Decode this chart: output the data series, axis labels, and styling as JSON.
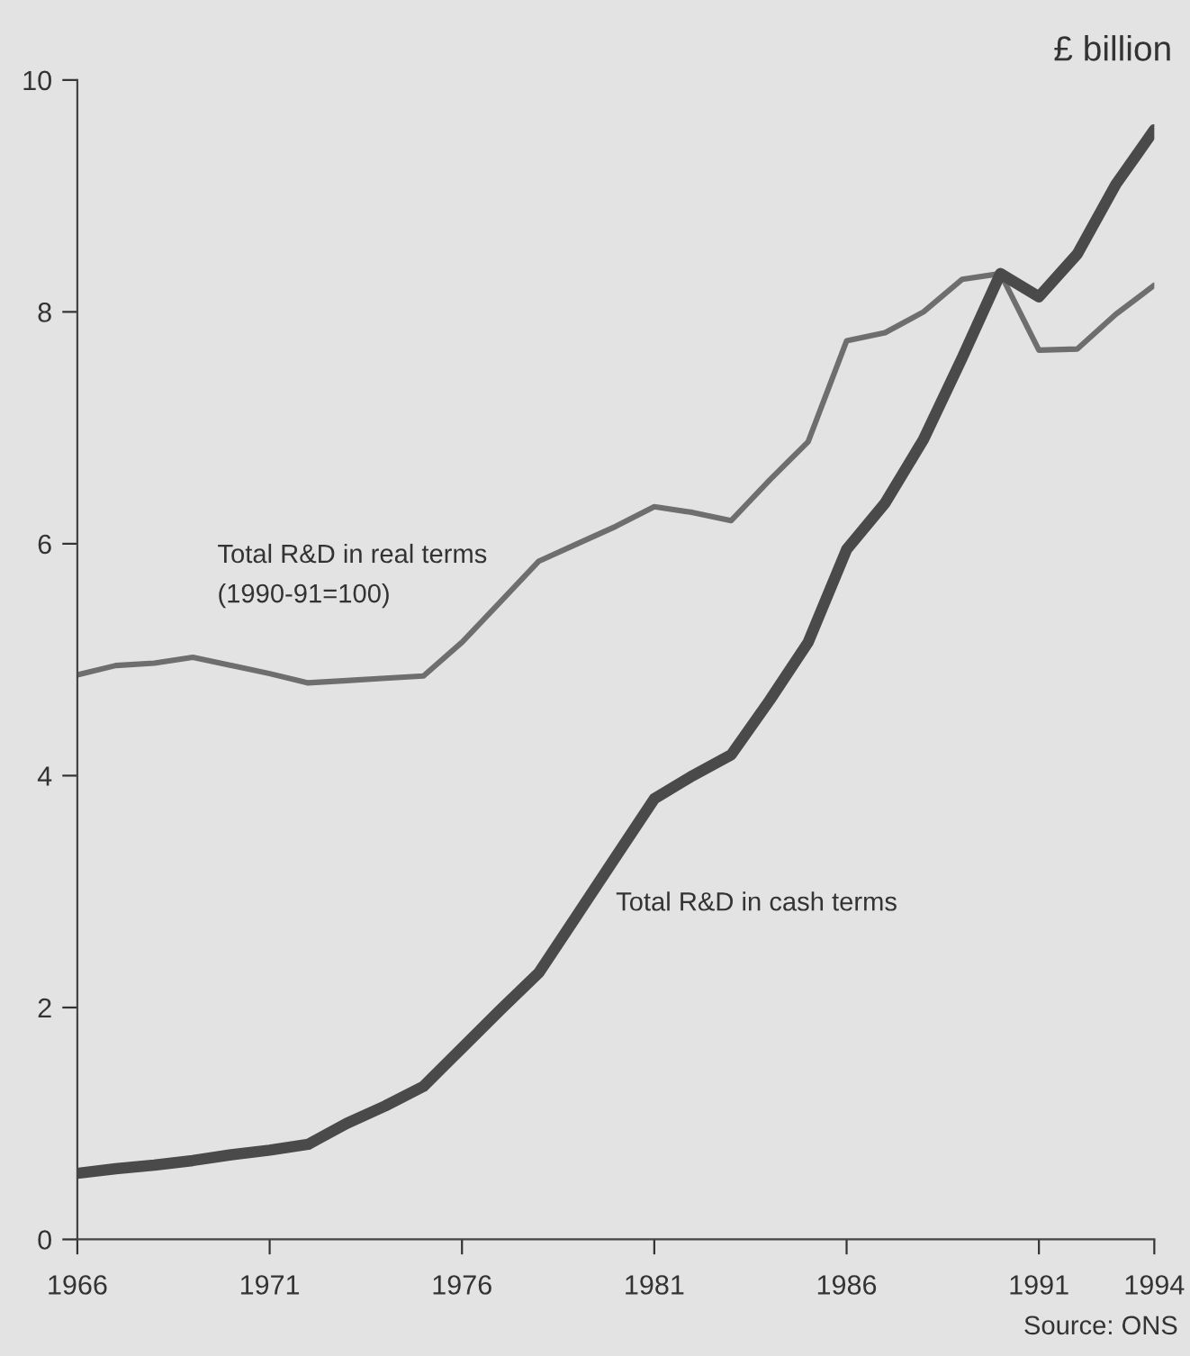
{
  "chart_data": {
    "type": "line",
    "ylabel": "£ billion",
    "annotations": [
      "Source: ONS"
    ],
    "x": [
      1966,
      1967,
      1968,
      1969,
      1970,
      1971,
      1972,
      1973,
      1974,
      1975,
      1976,
      1977,
      1978,
      1979,
      1980,
      1981,
      1982,
      1983,
      1984,
      1985,
      1986,
      1987,
      1988,
      1989,
      1990,
      1991,
      1992,
      1993,
      1994
    ],
    "series": [
      {
        "name": "Total R&D in real terms\n(1990-91=100)",
        "color": "#6e6e6e",
        "values": [
          4.87,
          4.95,
          4.97,
          5.02,
          4.95,
          4.88,
          4.8,
          4.82,
          4.84,
          4.86,
          5.15,
          5.5,
          5.85,
          6.0,
          6.15,
          6.32,
          6.27,
          6.2,
          6.55,
          6.88,
          7.75,
          7.82,
          8.0,
          8.28,
          8.33,
          7.67,
          7.68,
          7.98,
          8.23
        ]
      },
      {
        "name": "Total R&D in cash terms",
        "color": "#4a4a4a",
        "values": [
          0.57,
          0.61,
          0.64,
          0.68,
          0.73,
          0.77,
          0.82,
          1.0,
          1.15,
          1.32,
          1.65,
          1.98,
          2.3,
          2.8,
          3.3,
          3.8,
          4.0,
          4.18,
          4.65,
          5.15,
          5.95,
          6.35,
          6.9,
          7.6,
          8.33,
          8.13,
          8.5,
          9.1,
          9.57
        ]
      }
    ],
    "xlim": [
      1966,
      1994
    ],
    "xticks": [
      1966,
      1971,
      1976,
      1981,
      1986,
      1991,
      1994
    ],
    "ylim": [
      0,
      10
    ],
    "yticks": [
      0,
      2,
      4,
      6,
      8,
      10
    ],
    "grid": false,
    "legend": false,
    "marker": "none",
    "line_style": "solid"
  }
}
